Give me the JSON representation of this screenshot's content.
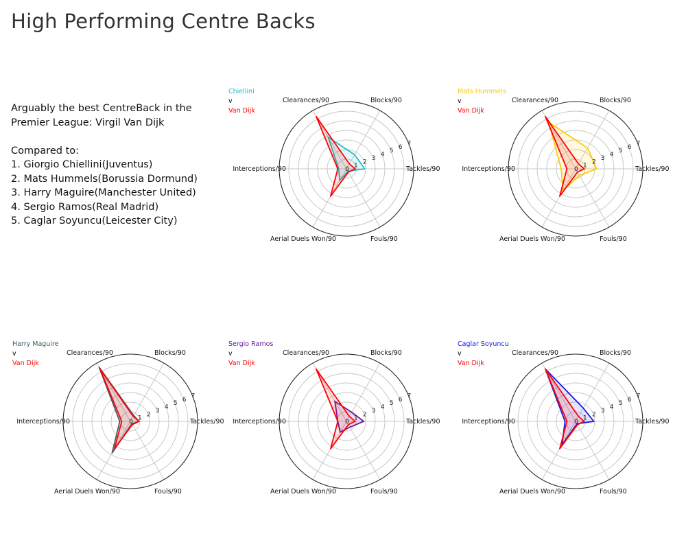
{
  "title": "High Performing Centre Backs",
  "intro": {
    "line1": "Arguably the best CentreBack in the",
    "line2": "Premier League: Virgil Van Dijk",
    "compared_label": "Compared to:",
    "list": [
      "1. Giorgio Chiellini(Juventus)",
      "2. Mats Hummels(Borussia Dormund)",
      "3. Harry Maguire(Manchester United)",
      "4. Sergio Ramos(Real Madrid)",
      "5. Caglar Soyuncu(Leicester City)"
    ]
  },
  "colors": {
    "van_dijk": "#ff0000",
    "grid": "#c8c8c8",
    "outer_ring": "#222222"
  },
  "chart_data": [
    {
      "type": "radar",
      "categories": [
        "Tackles/90",
        "Blocks/90",
        "Clearances/90",
        "Interceptions/90",
        "Aerial Duels Won/90",
        "Fouls/90"
      ],
      "ticks": [
        "0",
        "1",
        "2",
        "3",
        "4",
        "5",
        "6",
        "7"
      ],
      "rlim": [
        0,
        7
      ],
      "legend": [
        "Chiellini",
        "v",
        "Van Dijk"
      ],
      "series": [
        {
          "name": "Chiellini",
          "color": "#22bbcc",
          "values": [
            1.9,
            1.7,
            3.8,
            0.8,
            1.4,
            0.3
          ]
        },
        {
          "name": "Van Dijk",
          "color": "#ff0000",
          "values": [
            0.9,
            0.6,
            6.3,
            0.9,
            3.3,
            0.4
          ]
        }
      ]
    },
    {
      "type": "radar",
      "categories": [
        "Tackles/90",
        "Blocks/90",
        "Clearances/90",
        "Interceptions/90",
        "Aerial Duels Won/90",
        "Fouls/90"
      ],
      "ticks": [
        "0",
        "1",
        "2",
        "3",
        "4",
        "5",
        "6",
        "7"
      ],
      "rlim": [
        0,
        7
      ],
      "legend": [
        "Mats Hummels",
        "v",
        "Van Dijk"
      ],
      "series": [
        {
          "name": "Mats Hummels",
          "color": "#ffcc00",
          "values": [
            2.2,
            2.5,
            5.6,
            1.5,
            2.6,
            0.8
          ]
        },
        {
          "name": "Van Dijk",
          "color": "#ff0000",
          "values": [
            0.9,
            0.6,
            6.3,
            0.9,
            3.3,
            0.4
          ]
        }
      ]
    },
    {
      "type": "radar",
      "categories": [
        "Tackles/90",
        "Blocks/90",
        "Clearances/90",
        "Interceptions/90",
        "Aerial Duels Won/90",
        "Fouls/90"
      ],
      "ticks": [
        "0",
        "1",
        "2",
        "3",
        "4",
        "5",
        "6",
        "7"
      ],
      "rlim": [
        0,
        7
      ],
      "legend": [
        "Harry Maguire",
        "v",
        "Van Dijk"
      ],
      "series": [
        {
          "name": "Harry Maguire",
          "color": "#445a64",
          "values": [
            0.9,
            0.7,
            6.5,
            1.1,
            3.8,
            0.3
          ]
        },
        {
          "name": "Van Dijk",
          "color": "#ff0000",
          "values": [
            0.9,
            0.6,
            6.3,
            0.9,
            3.3,
            0.4
          ]
        }
      ]
    },
    {
      "type": "radar",
      "categories": [
        "Tackles/90",
        "Blocks/90",
        "Clearances/90",
        "Interceptions/90",
        "Aerial Duels Won/90",
        "Fouls/90"
      ],
      "ticks": [
        "0",
        "1",
        "2",
        "3",
        "4",
        "5",
        "6",
        "7"
      ],
      "rlim": [
        0,
        7
      ],
      "legend": [
        "Sergio Ramos",
        "v",
        "Van Dijk"
      ],
      "series": [
        {
          "name": "Sergio Ramos",
          "color": "#6a1b9a",
          "values": [
            1.8,
            1.1,
            2.4,
            0.9,
            1.3,
            0.7
          ]
        },
        {
          "name": "Van Dijk",
          "color": "#ff0000",
          "values": [
            0.9,
            0.6,
            6.3,
            0.9,
            3.3,
            0.4
          ]
        }
      ]
    },
    {
      "type": "radar",
      "categories": [
        "Tackles/90",
        "Blocks/90",
        "Clearances/90",
        "Interceptions/90",
        "Aerial Duels Won/90",
        "Fouls/90"
      ],
      "ticks": [
        "0",
        "1",
        "2",
        "3",
        "4",
        "5",
        "6",
        "7"
      ],
      "rlim": [
        0,
        7
      ],
      "legend": [
        "Caglar Soyuncu",
        "v",
        "Van Dijk"
      ],
      "series": [
        {
          "name": "Caglar Soyuncu",
          "color": "#1a1ae6",
          "values": [
            1.9,
            1.6,
            6.3,
            1.1,
            2.8,
            0.3
          ]
        },
        {
          "name": "Van Dijk",
          "color": "#ff0000",
          "values": [
            0.9,
            0.6,
            6.3,
            0.9,
            3.3,
            0.4
          ]
        }
      ]
    }
  ]
}
